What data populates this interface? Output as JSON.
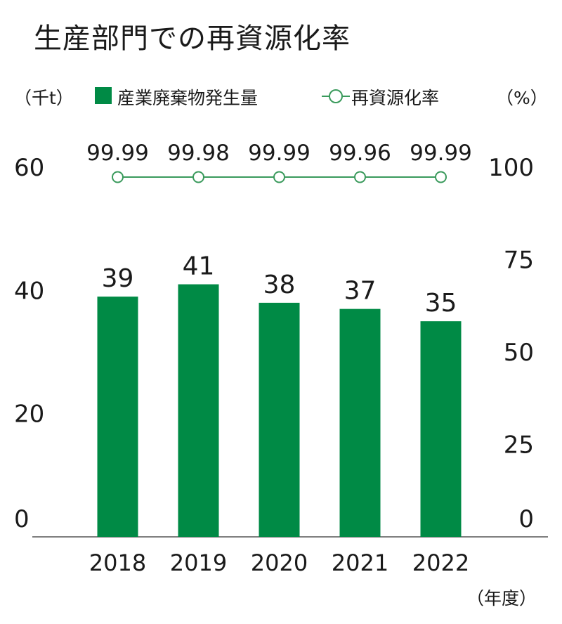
{
  "title": "生産部門での再資源化率",
  "legend": {
    "left_unit": "（千t）",
    "right_unit": "（%）",
    "bar_label": "産業廃棄物発生量",
    "line_label": "再資源化率"
  },
  "x_unit": "（年度）",
  "colors": {
    "bar": "#008a45",
    "line": "#3a9a5c"
  },
  "chart_data": {
    "type": "bar",
    "categories": [
      "2018",
      "2019",
      "2020",
      "2021",
      "2022"
    ],
    "series": [
      {
        "name": "産業廃棄物発生量",
        "type": "bar",
        "axis": "left",
        "values": [
          39,
          41,
          38,
          37,
          35
        ],
        "labels": [
          "39",
          "41",
          "38",
          "37",
          "35"
        ]
      },
      {
        "name": "再資源化率",
        "type": "line",
        "axis": "right",
        "values": [
          99.99,
          99.98,
          99.99,
          99.96,
          99.99
        ],
        "labels": [
          "99.99",
          "99.98",
          "99.99",
          "99.96",
          "99.99"
        ]
      }
    ],
    "y_left": {
      "min": 0,
      "max": 60,
      "ticks": [
        "0",
        "20",
        "40",
        "60"
      ]
    },
    "y_right": {
      "min": 0,
      "max": 100,
      "ticks": [
        "0",
        "25",
        "50",
        "75",
        "100"
      ]
    },
    "grid": false
  }
}
